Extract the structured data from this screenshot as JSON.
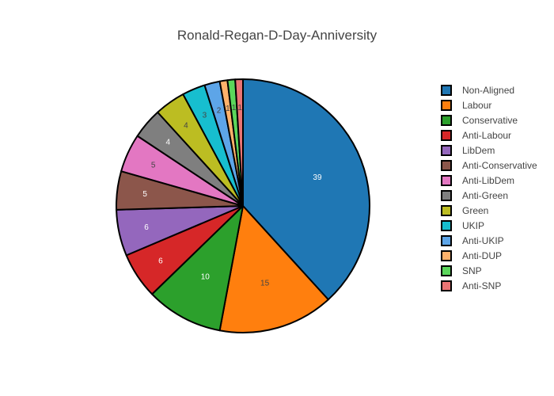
{
  "chart_data": {
    "type": "pie",
    "title": "Ronald-Regan-D-Day-Anniversity",
    "legend_position": "right",
    "slices": [
      {
        "name": "Non-Aligned",
        "value": 39,
        "color": "#1f77b4"
      },
      {
        "name": "Labour",
        "value": 15,
        "color": "#ff7f0e"
      },
      {
        "name": "Conservative",
        "value": 10,
        "color": "#2ca02c"
      },
      {
        "name": "Anti-Labour",
        "value": 6,
        "color": "#d62728"
      },
      {
        "name": "LibDem",
        "value": 6,
        "color": "#9467bd"
      },
      {
        "name": "Anti-Conservative",
        "value": 5,
        "color": "#8c564b"
      },
      {
        "name": "Anti-LibDem",
        "value": 5,
        "color": "#e377c2"
      },
      {
        "name": "Anti-Green",
        "value": 4,
        "color": "#7f7f7f"
      },
      {
        "name": "Green",
        "value": 4,
        "color": "#bcbd22"
      },
      {
        "name": "UKIP",
        "value": 3,
        "color": "#17becf"
      },
      {
        "name": "Anti-UKIP",
        "value": 2,
        "color": "#5da5e8"
      },
      {
        "name": "Anti-DUP",
        "value": 1,
        "color": "#ffb26b"
      },
      {
        "name": "SNP",
        "value": 1,
        "color": "#5bd65b"
      },
      {
        "name": "Anti-SNP",
        "value": 1,
        "color": "#ea7474"
      }
    ]
  }
}
